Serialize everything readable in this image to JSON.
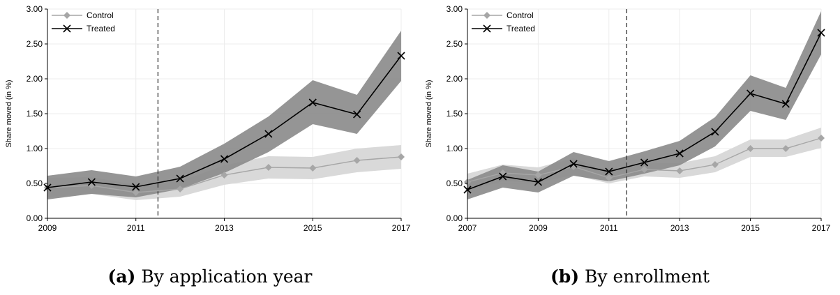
{
  "charts": [
    {
      "caption": {
        "letter": "(a)",
        "text": "By application year"
      },
      "chart_data": {
        "type": "line",
        "ylabel": "Share moved (in %)",
        "xlim": [
          2009,
          2017
        ],
        "ylim": [
          0,
          3
        ],
        "xticks": [
          "2009",
          "2011",
          "2013",
          "2015",
          "2017"
        ],
        "yticks": [
          "0.00",
          "0.50",
          "1.00",
          "1.50",
          "2.00",
          "2.50",
          "3.00"
        ],
        "grid": true,
        "legend_position": "top-left",
        "vline": 2011.5,
        "x": [
          2009,
          2010,
          2011,
          2012,
          2013,
          2014,
          2015,
          2016,
          2017
        ],
        "series": [
          {
            "name": "Control",
            "marker": "diamond",
            "color": "#a6a6a6",
            "band_color": "#d9d9d9",
            "values": [
              0.44,
              0.47,
              0.37,
              0.42,
              0.62,
              0.73,
              0.72,
              0.83,
              0.88
            ],
            "lower": [
              0.3,
              0.35,
              0.26,
              0.31,
              0.48,
              0.57,
              0.56,
              0.66,
              0.71
            ],
            "upper": [
              0.58,
              0.59,
              0.48,
              0.53,
              0.76,
              0.89,
              0.88,
              1.0,
              1.05
            ]
          },
          {
            "name": "Treated",
            "marker": "x",
            "color": "#000000",
            "band_color": "#8c8c8c",
            "values": [
              0.44,
              0.52,
              0.45,
              0.57,
              0.85,
              1.21,
              1.66,
              1.49,
              2.33
            ],
            "lower": [
              0.27,
              0.35,
              0.3,
              0.42,
              0.65,
              0.95,
              1.35,
              1.21,
              1.97
            ],
            "upper": [
              0.61,
              0.69,
              0.6,
              0.74,
              1.07,
              1.46,
              1.98,
              1.77,
              2.69
            ]
          }
        ]
      }
    },
    {
      "caption": {
        "letter": "(b)",
        "text": "By enrollment"
      },
      "chart_data": {
        "type": "line",
        "ylabel": "Share moved (in %)",
        "xlim": [
          2007,
          2017
        ],
        "ylim": [
          0,
          3
        ],
        "xticks": [
          "2007",
          "2009",
          "2011",
          "2013",
          "2015",
          "2017"
        ],
        "yticks": [
          "0.00",
          "0.50",
          "1.00",
          "1.50",
          "2.00",
          "2.50",
          "3.00"
        ],
        "grid": true,
        "legend_position": "top-left",
        "vline": 2011.5,
        "x": [
          2007,
          2008,
          2009,
          2010,
          2011,
          2012,
          2013,
          2014,
          2015,
          2016,
          2017
        ],
        "series": [
          {
            "name": "Control",
            "marker": "diamond",
            "color": "#a6a6a6",
            "band_color": "#d9d9d9",
            "values": [
              0.52,
              0.65,
              0.62,
              0.74,
              0.58,
              0.7,
              0.68,
              0.77,
              1.0,
              1.0,
              1.15
            ],
            "lower": [
              0.4,
              0.53,
              0.51,
              0.62,
              0.5,
              0.6,
              0.58,
              0.66,
              0.88,
              0.88,
              1.01
            ],
            "upper": [
              0.64,
              0.77,
              0.73,
              0.86,
              0.67,
              0.8,
              0.79,
              0.89,
              1.13,
              1.13,
              1.3
            ]
          },
          {
            "name": "Treated",
            "marker": "x",
            "color": "#000000",
            "band_color": "#8c8c8c",
            "values": [
              0.41,
              0.6,
              0.52,
              0.78,
              0.67,
              0.8,
              0.93,
              1.24,
              1.79,
              1.64,
              2.66
            ],
            "lower": [
              0.27,
              0.44,
              0.37,
              0.61,
              0.53,
              0.64,
              0.76,
              1.03,
              1.54,
              1.41,
              2.35
            ],
            "upper": [
              0.55,
              0.76,
              0.67,
              0.95,
              0.82,
              0.96,
              1.11,
              1.45,
              2.05,
              1.87,
              2.97
            ]
          }
        ]
      }
    }
  ]
}
